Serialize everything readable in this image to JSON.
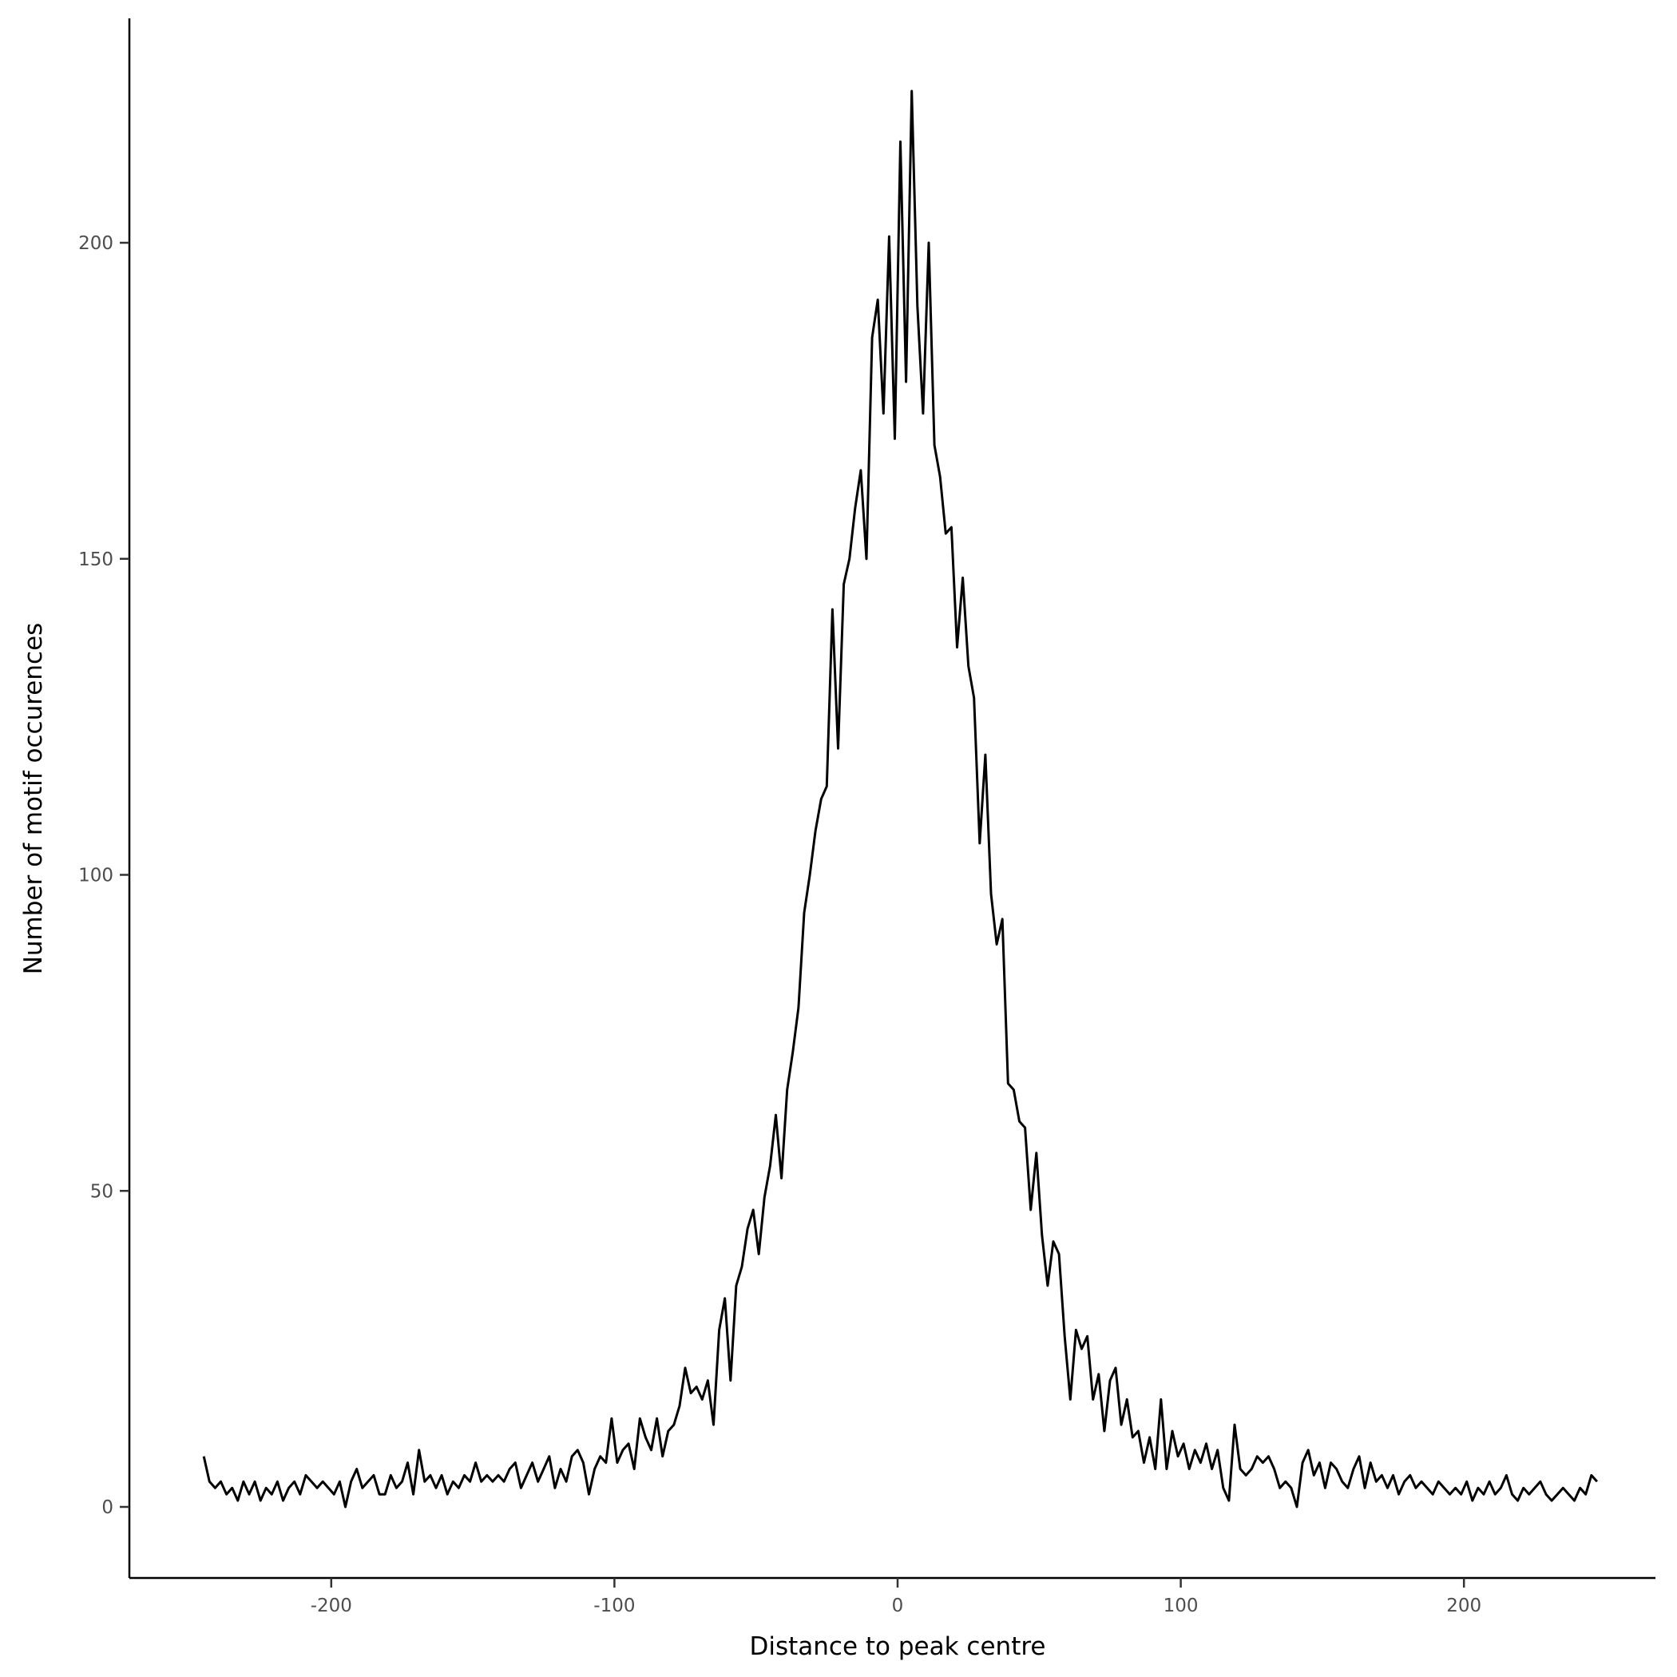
{
  "chart_data": {
    "type": "line",
    "title": "",
    "xlabel": "Distance to peak centre",
    "ylabel": "Number of motif occurences",
    "xlim": [
      -265,
      266
    ],
    "ylim": [
      -11,
      235
    ],
    "xticks": [
      -200,
      -100,
      0,
      100,
      200
    ],
    "xtick_labels": [
      "-200",
      "-100",
      "0",
      "100",
      "200"
    ],
    "yticks": [
      0,
      50,
      100,
      150,
      200
    ],
    "ytick_labels": [
      "0",
      "50",
      "100",
      "150",
      "200"
    ],
    "grid": false,
    "line_color": "#000000",
    "series": [
      {
        "name": "motif occurrences",
        "x_start": -245,
        "x_step": 2,
        "values": [
          8,
          4,
          3,
          4,
          2,
          3,
          1,
          4,
          2,
          4,
          1,
          3,
          2,
          4,
          1,
          3,
          4,
          2,
          5,
          4,
          3,
          4,
          3,
          2,
          4,
          0,
          4,
          6,
          3,
          4,
          5,
          2,
          2,
          5,
          3,
          4,
          7,
          2,
          9,
          4,
          5,
          3,
          5,
          2,
          4,
          3,
          5,
          4,
          7,
          4,
          5,
          4,
          5,
          4,
          6,
          7,
          3,
          5,
          7,
          4,
          6,
          8,
          3,
          6,
          4,
          8,
          9,
          7,
          2,
          6,
          8,
          7,
          14,
          7,
          9,
          10,
          6,
          14,
          11,
          9,
          14,
          8,
          12,
          13,
          16,
          22,
          18,
          19,
          17,
          20,
          13,
          28,
          33,
          20,
          35,
          38,
          44,
          47,
          40,
          49,
          54,
          62,
          52,
          66,
          72,
          79,
          94,
          100,
          107,
          112,
          114,
          142,
          120,
          146,
          150,
          158,
          164,
          150,
          185,
          191,
          173,
          201,
          169,
          216,
          178,
          224,
          190,
          173,
          200,
          168,
          163,
          154,
          155,
          136,
          147,
          133,
          128,
          105,
          119,
          97,
          89,
          93,
          67,
          66,
          61,
          60,
          47,
          56,
          43,
          35,
          42,
          40,
          27,
          17,
          28,
          25,
          27,
          17,
          21,
          12,
          20,
          22,
          13,
          17,
          11,
          12,
          7,
          11,
          6,
          17,
          6,
          12,
          8,
          10,
          6,
          9,
          7,
          10,
          6,
          9,
          3,
          1,
          13,
          6,
          5,
          6,
          8,
          7,
          8,
          6,
          3,
          4,
          3,
          0,
          7,
          9,
          5,
          7,
          3,
          7,
          6,
          4,
          3,
          6,
          8,
          3,
          7,
          4,
          5,
          3,
          5,
          2,
          4,
          5,
          3,
          4,
          3,
          2,
          4,
          3,
          2,
          3,
          2,
          4,
          1,
          3,
          2,
          4,
          2,
          3,
          5,
          2,
          1,
          3,
          2,
          3,
          4,
          2,
          1,
          2,
          3,
          2,
          1,
          3,
          2,
          5,
          4
        ]
      }
    ]
  }
}
